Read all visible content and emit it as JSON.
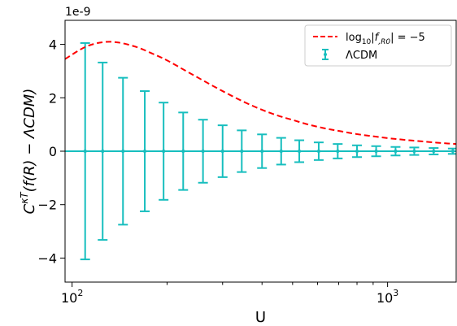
{
  "chart_data": {
    "type": "line",
    "x_scale": "log",
    "xlim": [
      95,
      1650
    ],
    "ylim": [
      -4.9,
      4.9
    ],
    "y_offset_text": "1e-9",
    "xlabel": "U",
    "ylabel": "C^{κT}(f(R) − ΛCDM)",
    "ylabel_parts": {
      "base": "C",
      "sup": "κT",
      "rest": "(f(R) − ΛCDM)"
    },
    "x_ticks": [
      {
        "value": 100,
        "label_base": "10",
        "label_exp": "2"
      },
      {
        "value": 1000,
        "label_base": "10",
        "label_exp": "3"
      }
    ],
    "x_minor_ticks": [
      200,
      300,
      400,
      500,
      600,
      700,
      800,
      900
    ],
    "y_ticks": [
      {
        "value": -4,
        "label": "−4"
      },
      {
        "value": -2,
        "label": "−2"
      },
      {
        "value": 0,
        "label": "0"
      },
      {
        "value": 2,
        "label": "2"
      },
      {
        "value": 4,
        "label": "4"
      }
    ],
    "grid": false,
    "legend_position": "upper-right",
    "series": [
      {
        "name": "log10|fR0| = −5",
        "legend_label": {
          "pre": "log",
          "sub": "10",
          "mid": "|f",
          "sub2": ",R0",
          "post": "| = −5"
        },
        "style": "dashed",
        "color": "#ff0000",
        "x": [
          95,
          110,
          125,
          140,
          160,
          180,
          200,
          230,
          260,
          300,
          350,
          400,
          450,
          500,
          560,
          630,
          700,
          800,
          900,
          1000,
          1100,
          1250,
          1400,
          1550,
          1650
        ],
        "y": [
          3.45,
          3.9,
          4.08,
          4.07,
          3.9,
          3.65,
          3.4,
          3.0,
          2.65,
          2.25,
          1.85,
          1.55,
          1.33,
          1.17,
          1.0,
          0.86,
          0.76,
          0.64,
          0.56,
          0.49,
          0.44,
          0.38,
          0.33,
          0.29,
          0.27
        ]
      },
      {
        "name": "ΛCDM",
        "style": "errorbar",
        "color": "#17bebe",
        "x": [
          110,
          125,
          145,
          170,
          195,
          225,
          260,
          300,
          345,
          400,
          460,
          525,
          605,
          695,
          800,
          920,
          1060,
          1215,
          1400,
          1610
        ],
        "y": [
          0,
          0,
          0,
          0,
          0,
          0,
          0,
          0,
          0,
          0,
          0,
          0,
          0,
          0,
          0,
          0,
          0,
          0,
          0,
          0
        ],
        "yerr": [
          4.05,
          3.32,
          2.75,
          2.25,
          1.82,
          1.45,
          1.18,
          0.97,
          0.78,
          0.63,
          0.5,
          0.41,
          0.33,
          0.27,
          0.22,
          0.19,
          0.16,
          0.14,
          0.12,
          0.1
        ]
      }
    ]
  }
}
